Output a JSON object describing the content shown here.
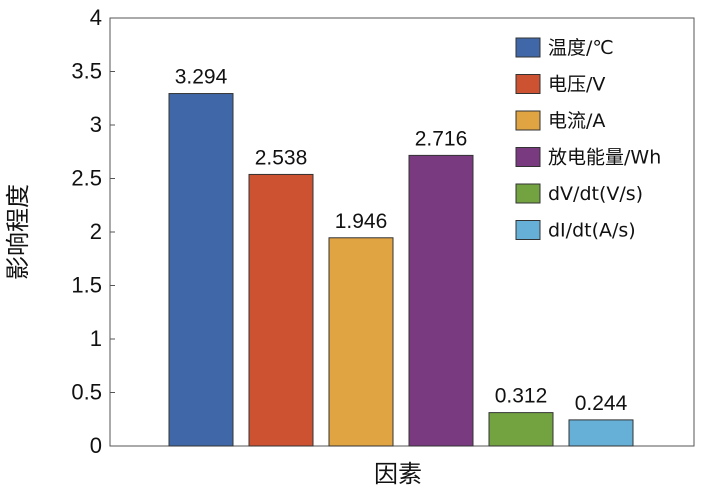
{
  "chart_data": {
    "type": "bar",
    "categories": [
      "温度/℃",
      "电压/V",
      "电流/A",
      "放电能量/Wh",
      "dV/dt(V/s)",
      "dI/dt(A/s)"
    ],
    "values": [
      3.294,
      2.538,
      1.946,
      2.716,
      0.312,
      0.244
    ],
    "value_labels": [
      "3.294",
      "2.538",
      "1.946",
      "2.716",
      "0.312",
      "0.244"
    ],
    "colors": [
      "#4068a8",
      "#cc5232",
      "#e0a442",
      "#7a3a80",
      "#73a340",
      "#66b0d8"
    ],
    "xlabel": "因素",
    "ylabel": "影响程度",
    "ylim": [
      0,
      4
    ],
    "yticks": [
      "0",
      "0.5",
      "1",
      "1.5",
      "2",
      "2.5",
      "3",
      "3.5",
      "4"
    ],
    "legend_placement": "top-right",
    "grid": false
  }
}
